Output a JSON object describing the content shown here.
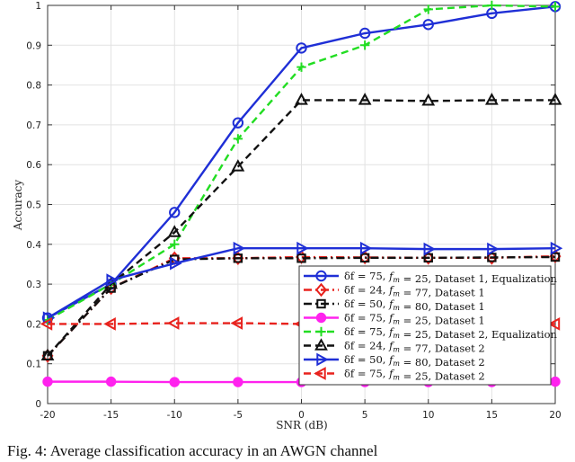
{
  "chart_data": {
    "type": "line",
    "xlabel": "SNR (dB)",
    "ylabel": "Accuracy",
    "xlim": [
      -20,
      20
    ],
    "ylim": [
      0,
      1
    ],
    "xticks": [
      -20,
      -15,
      -10,
      -5,
      0,
      5,
      10,
      15,
      20
    ],
    "yticks": [
      0,
      0.1,
      0.2,
      0.3,
      0.4,
      0.5,
      0.6,
      0.7,
      0.8,
      0.9,
      1
    ],
    "grid": true,
    "legend_position": "bottom-right",
    "x": [
      -20,
      -15,
      -10,
      -5,
      0,
      5,
      10,
      15,
      20
    ],
    "series": [
      {
        "name": "δf = 75, f_m = 25, Dataset 1, Equalization",
        "color": "#1f2fd6",
        "dash": "solid",
        "marker": "circle",
        "values": [
          0.215,
          0.3,
          0.48,
          0.705,
          0.893,
          0.93,
          0.952,
          0.98,
          0.997
        ]
      },
      {
        "name": "δf = 24, f_m = 77, Dataset 1",
        "color": "#e8221d",
        "dash": "dashdot",
        "marker": "diamond",
        "values": [
          0.12,
          0.29,
          0.365,
          0.365,
          0.368,
          0.367,
          0.366,
          0.366,
          0.37
        ]
      },
      {
        "name": "δf = 50, f_m = 80, Dataset 1",
        "color": "#111111",
        "dash": "dashdot",
        "marker": "square",
        "values": [
          0.12,
          0.29,
          0.362,
          0.365,
          0.365,
          0.366,
          0.366,
          0.367,
          0.368
        ]
      },
      {
        "name": "δf = 75, f_m = 25, Dataset 1",
        "color": "#ff22ee",
        "dash": "solid",
        "marker": "circle-filled",
        "values": [
          0.055,
          0.055,
          0.054,
          0.054,
          0.054,
          0.054,
          0.054,
          0.054,
          0.055
        ]
      },
      {
        "name": "δf = 75, f_m = 25, Dataset 2, Equalization",
        "color": "#22dd22",
        "dash": "dash",
        "marker": "plus",
        "values": [
          0.21,
          0.3,
          0.4,
          0.665,
          0.845,
          0.9,
          0.99,
          1.0,
          0.997
        ]
      },
      {
        "name": "δf = 24, f_m = 77, Dataset 2",
        "color": "#111111",
        "dash": "dash",
        "marker": "triangle-up",
        "values": [
          0.12,
          0.3,
          0.43,
          0.595,
          0.762,
          0.762,
          0.76,
          0.762,
          0.762
        ]
      },
      {
        "name": "δf = 50, f_m = 80, Dataset 2",
        "color": "#1f2fd6",
        "dash": "solid",
        "marker": "triangle-right",
        "values": [
          0.215,
          0.31,
          0.352,
          0.39,
          0.39,
          0.39,
          0.388,
          0.388,
          0.39
        ]
      },
      {
        "name": "δf = 75, f_m = 25, Dataset 2",
        "color": "#e8221d",
        "dash": "dash",
        "marker": "triangle-left",
        "values": [
          0.2,
          0.2,
          0.202,
          0.202,
          0.2,
          0.2,
          0.2,
          0.2,
          0.2
        ]
      }
    ]
  },
  "caption": "Fig. 4: Average classification accuracy in an AWGN channel"
}
